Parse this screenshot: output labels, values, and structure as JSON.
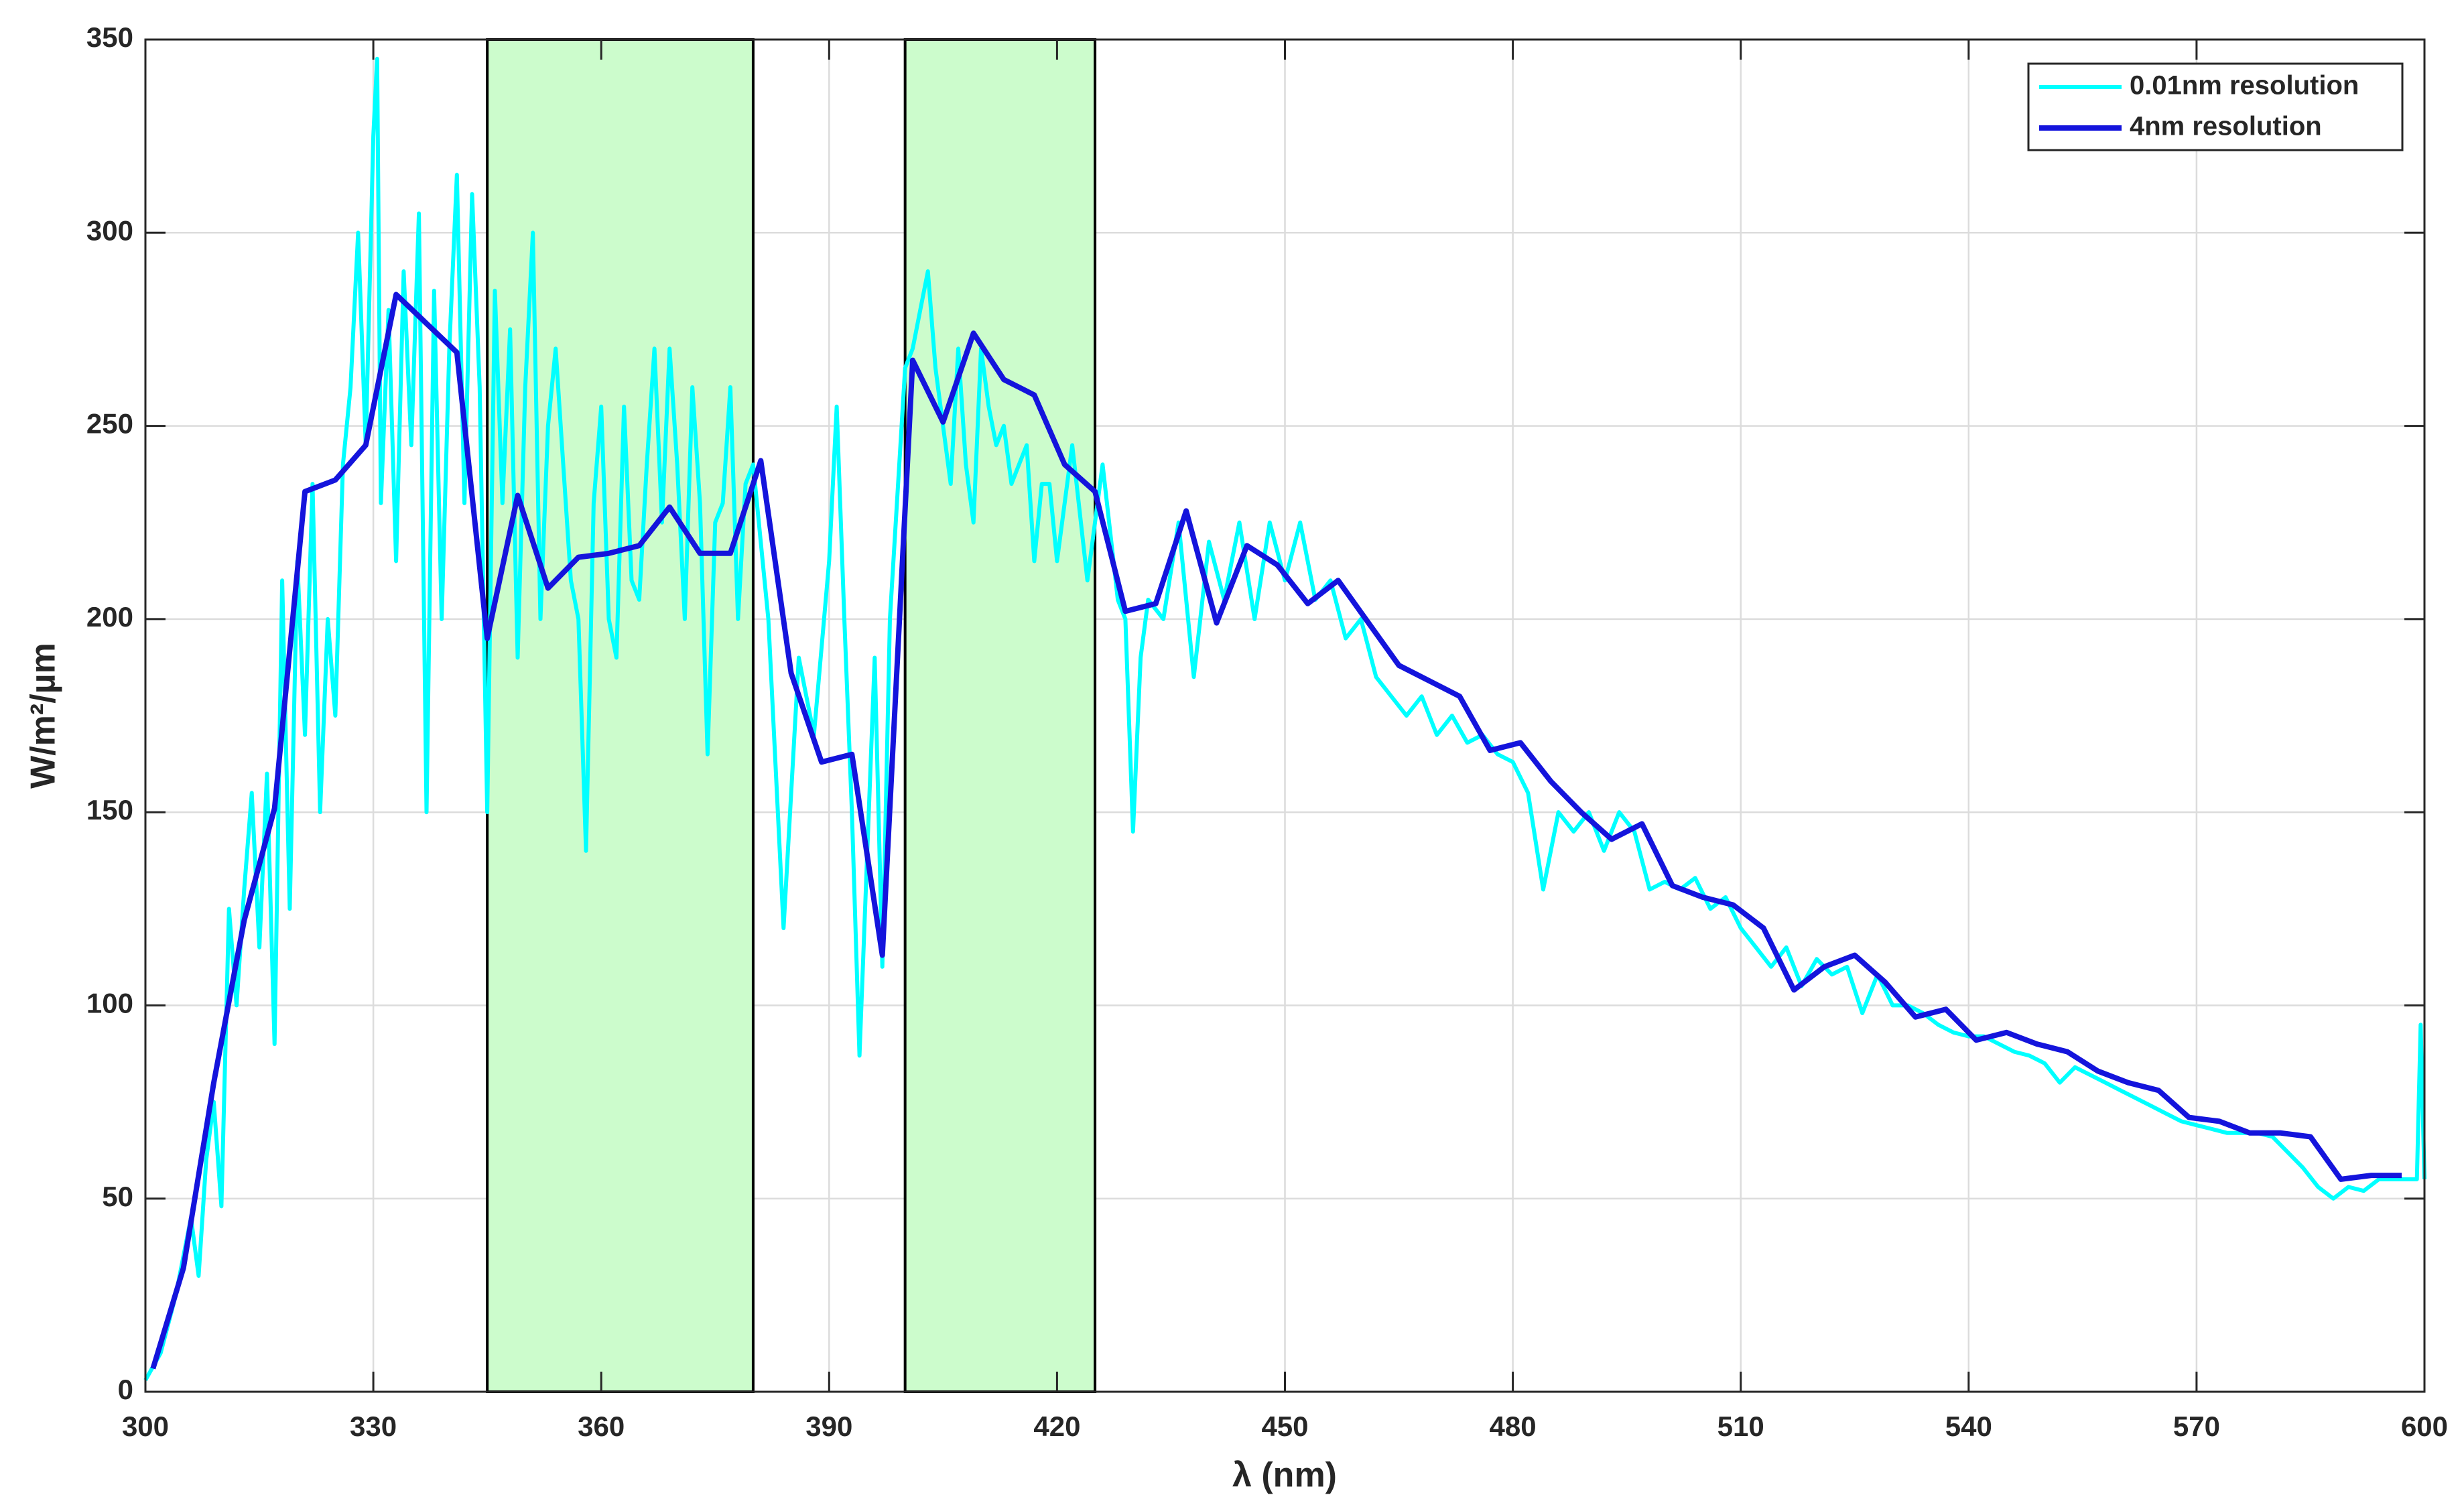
{
  "chart_data": {
    "type": "line",
    "xlabel": "λ (nm)",
    "ylabel": "W/m²/µm",
    "xlim": [
      300,
      600
    ],
    "xticks": [
      300,
      330,
      360,
      390,
      420,
      450,
      480,
      510,
      540,
      570,
      600
    ],
    "ylim": [
      0,
      350
    ],
    "yticks": [
      0,
      50,
      100,
      150,
      200,
      250,
      300,
      350
    ],
    "grid": true,
    "legend": "northeast",
    "shaded_regions": [
      {
        "x": [
          345,
          380
        ],
        "color": "#ccfccc"
      },
      {
        "x": [
          400,
          425
        ],
        "color": "#ccfccc"
      }
    ],
    "series": [
      {
        "name": "0.01nm resolution",
        "color": "#00ffff",
        "x": [
          300,
          302,
          304,
          306,
          307,
          308,
          309,
          310,
          311,
          312,
          313,
          314,
          315,
          316,
          317,
          318,
          319,
          320,
          321,
          322,
          323,
          324,
          325,
          326,
          327,
          328,
          329,
          330,
          330.5,
          331,
          332,
          333,
          334,
          335,
          336,
          337,
          338,
          339,
          340,
          341,
          342,
          343,
          344,
          345,
          346,
          347,
          348,
          349,
          350,
          351,
          352,
          353,
          354,
          355,
          356,
          357,
          358,
          359,
          360,
          361,
          362,
          363,
          364,
          365,
          366,
          367,
          368,
          369,
          370,
          371,
          372,
          373,
          374,
          375,
          376,
          377,
          378,
          379,
          380,
          382,
          384,
          386,
          388,
          390,
          391,
          392,
          393,
          394,
          396,
          397,
          398,
          400,
          401,
          402,
          403,
          404,
          405,
          406,
          407,
          408,
          409,
          410,
          411,
          412,
          413,
          414,
          415,
          416,
          417,
          418,
          419,
          420,
          422,
          424,
          426,
          428,
          429,
          430,
          431,
          432,
          434,
          436,
          438,
          440,
          442,
          444,
          446,
          448,
          450,
          452,
          454,
          456,
          458,
          460,
          462,
          464,
          466,
          468,
          470,
          472,
          474,
          476,
          478,
          480,
          482,
          484,
          486,
          488,
          490,
          492,
          494,
          496,
          498,
          500,
          502,
          504,
          506,
          508,
          510,
          512,
          514,
          516,
          518,
          520,
          522,
          524,
          526,
          528,
          530,
          532,
          534,
          536,
          538,
          540,
          542,
          544,
          546,
          548,
          550,
          552,
          554,
          556,
          558,
          560,
          562,
          564,
          566,
          568,
          570,
          572,
          574,
          576,
          578,
          580,
          582,
          584,
          586,
          588,
          590,
          592,
          594,
          596,
          598,
          599,
          599.5,
          600
        ],
        "values": [
          3,
          10,
          25,
          45,
          30,
          60,
          75,
          48,
          125,
          100,
          130,
          155,
          115,
          160,
          90,
          210,
          125,
          215,
          170,
          235,
          150,
          200,
          175,
          240,
          260,
          300,
          245,
          325,
          345,
          230,
          280,
          215,
          290,
          245,
          305,
          150,
          285,
          200,
          270,
          315,
          230,
          310,
          260,
          150,
          285,
          230,
          275,
          190,
          260,
          300,
          200,
          250,
          270,
          240,
          210,
          200,
          140,
          230,
          255,
          200,
          190,
          255,
          210,
          205,
          240,
          270,
          225,
          270,
          240,
          200,
          260,
          230,
          165,
          225,
          230,
          260,
          200,
          235,
          240,
          200,
          120,
          190,
          170,
          215,
          255,
          200,
          150,
          87,
          190,
          110,
          200,
          265,
          270,
          280,
          290,
          265,
          250,
          235,
          270,
          240,
          225,
          270,
          255,
          245,
          250,
          235,
          240,
          245,
          215,
          235,
          235,
          215,
          245,
          210,
          240,
          205,
          200,
          145,
          190,
          205,
          200,
          225,
          185,
          220,
          205,
          225,
          200,
          225,
          210,
          225,
          205,
          210,
          195,
          200,
          185,
          180,
          175,
          180,
          170,
          175,
          168,
          170,
          165,
          163,
          155,
          130,
          150,
          145,
          150,
          140,
          150,
          145,
          130,
          132,
          130,
          133,
          125,
          128,
          120,
          115,
          110,
          115,
          105,
          112,
          108,
          110,
          98,
          108,
          100,
          100,
          98,
          95,
          93,
          92,
          92,
          90,
          88,
          87,
          85,
          80,
          84,
          82,
          80,
          78,
          76,
          74,
          72,
          70,
          69,
          68,
          67,
          67,
          67,
          66,
          62,
          58,
          53,
          50,
          53,
          52,
          55,
          55,
          55,
          55,
          95,
          55
        ]
      },
      {
        "name": "4nm resolution",
        "color": "#1414dc",
        "x": [
          301,
          305,
          309,
          313,
          317,
          321,
          325,
          329,
          333,
          341,
          345,
          349,
          353,
          357,
          361,
          365,
          369,
          373,
          377,
          381,
          385,
          389,
          393,
          397,
          401,
          405,
          409,
          413,
          417,
          421,
          425,
          429,
          433,
          437,
          441,
          445,
          449,
          453,
          457,
          461,
          465,
          469,
          473,
          477,
          481,
          485,
          489,
          493,
          497,
          501,
          505,
          509,
          513,
          517,
          521,
          525,
          529,
          533,
          537,
          541,
          545,
          549,
          553,
          557,
          561,
          565,
          569,
          573,
          577,
          581,
          585,
          589,
          593,
          597
        ],
        "values": [
          6,
          32,
          80,
          122,
          151,
          233,
          236,
          245,
          284,
          269,
          195,
          232,
          208,
          216,
          217,
          219,
          229,
          217,
          217,
          241,
          186,
          163,
          165,
          113,
          267,
          251,
          274,
          262,
          258,
          240,
          233,
          202,
          204,
          228,
          199,
          219,
          214,
          204,
          210,
          199,
          188,
          184,
          180,
          166,
          168,
          158,
          150,
          143,
          147,
          131,
          128,
          126,
          120,
          104,
          110,
          113,
          106,
          97,
          99,
          91,
          93,
          90,
          88,
          83,
          80,
          78,
          71,
          70,
          67,
          67,
          66,
          55,
          56,
          56
        ]
      }
    ]
  }
}
